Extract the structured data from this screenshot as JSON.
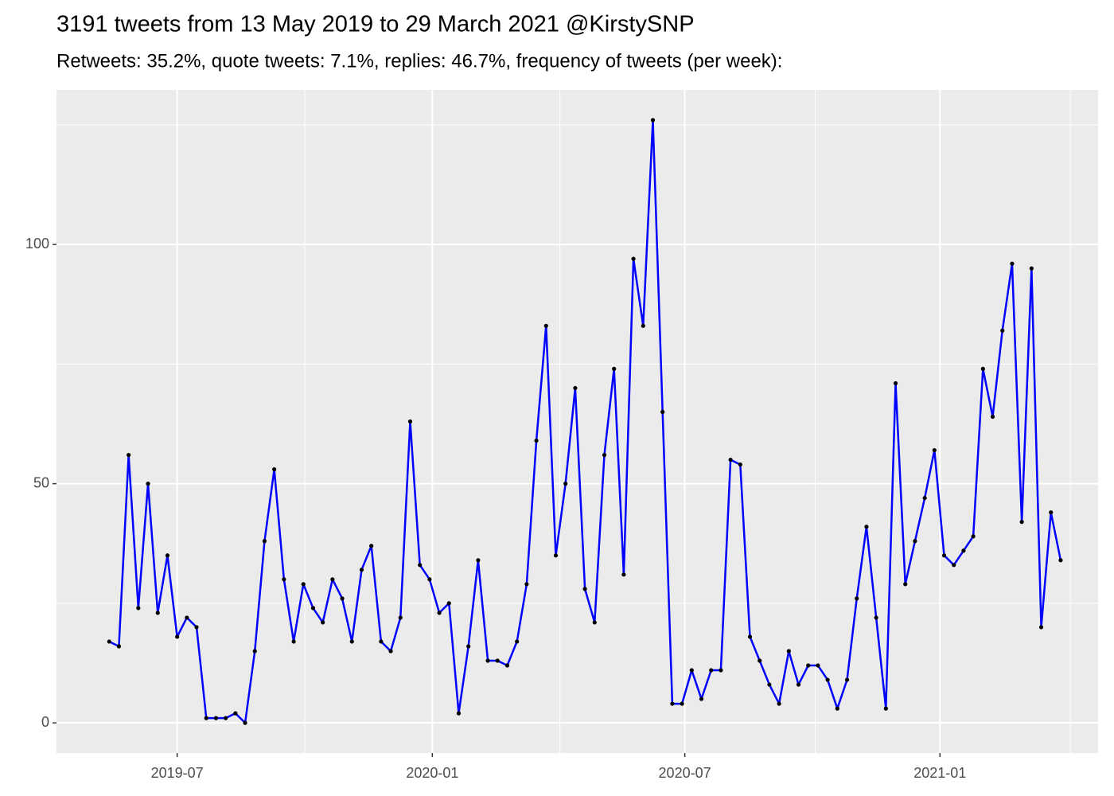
{
  "chart_data": {
    "type": "line",
    "title": "3191 tweets from 13 May 2019 to 29 March 2021 @KirstySNP",
    "subtitle": "Retweets: 35.2%, quote tweets: 7.1%, replies: 46.7%, frequency of tweets (per week):",
    "x": [
      "2019-05-13",
      "2019-05-20",
      "2019-05-27",
      "2019-06-03",
      "2019-06-10",
      "2019-06-17",
      "2019-06-24",
      "2019-07-01",
      "2019-07-08",
      "2019-07-15",
      "2019-07-22",
      "2019-07-29",
      "2019-08-05",
      "2019-08-12",
      "2019-08-19",
      "2019-08-26",
      "2019-09-02",
      "2019-09-09",
      "2019-09-16",
      "2019-09-23",
      "2019-09-30",
      "2019-10-07",
      "2019-10-14",
      "2019-10-21",
      "2019-10-28",
      "2019-11-04",
      "2019-11-11",
      "2019-11-18",
      "2019-11-25",
      "2019-12-02",
      "2019-12-09",
      "2019-12-16",
      "2019-12-23",
      "2019-12-30",
      "2020-01-06",
      "2020-01-13",
      "2020-01-20",
      "2020-01-27",
      "2020-02-03",
      "2020-02-10",
      "2020-02-17",
      "2020-02-24",
      "2020-03-02",
      "2020-03-09",
      "2020-03-16",
      "2020-03-23",
      "2020-03-30",
      "2020-04-06",
      "2020-04-13",
      "2020-04-20",
      "2020-04-27",
      "2020-05-04",
      "2020-05-11",
      "2020-05-18",
      "2020-05-25",
      "2020-06-01",
      "2020-06-08",
      "2020-06-15",
      "2020-06-22",
      "2020-06-29",
      "2020-07-06",
      "2020-07-13",
      "2020-07-20",
      "2020-07-27",
      "2020-08-03",
      "2020-08-10",
      "2020-08-17",
      "2020-08-24",
      "2020-08-31",
      "2020-09-07",
      "2020-09-14",
      "2020-09-21",
      "2020-09-28",
      "2020-10-05",
      "2020-10-12",
      "2020-10-19",
      "2020-10-26",
      "2020-11-02",
      "2020-11-09",
      "2020-11-16",
      "2020-11-23",
      "2020-11-30",
      "2020-12-07",
      "2020-12-14",
      "2020-12-21",
      "2020-12-28",
      "2021-01-04",
      "2021-01-11",
      "2021-01-18",
      "2021-01-25",
      "2021-02-01",
      "2021-02-08",
      "2021-02-15",
      "2021-02-22",
      "2021-03-01",
      "2021-03-08",
      "2021-03-15",
      "2021-03-22",
      "2021-03-29"
    ],
    "values": [
      17,
      16,
      56,
      24,
      50,
      23,
      35,
      18,
      22,
      20,
      1,
      1,
      1,
      2,
      0,
      15,
      38,
      53,
      30,
      17,
      29,
      24,
      21,
      30,
      26,
      17,
      32,
      37,
      17,
      15,
      22,
      63,
      33,
      30,
      23,
      25,
      2,
      16,
      34,
      13,
      13,
      12,
      17,
      29,
      59,
      83,
      35,
      50,
      70,
      28,
      21,
      56,
      74,
      31,
      97,
      83,
      126,
      65,
      4,
      4,
      11,
      5,
      11,
      11,
      55,
      54,
      18,
      13,
      8,
      4,
      15,
      8,
      12,
      12,
      9,
      3,
      9,
      26,
      41,
      22,
      3,
      71,
      29,
      38,
      47,
      57,
      35,
      33,
      36,
      39,
      74,
      64,
      82,
      96,
      42,
      95,
      20,
      44,
      34
    ],
    "color": "#0000ff",
    "point_color": "#000000",
    "xlim": [
      "2019-04-05",
      "2021-04-25"
    ],
    "xticks": [
      {
        "value": "2019-07-01",
        "label": "2019-07"
      },
      {
        "value": "2020-01-01",
        "label": "2020-01"
      },
      {
        "value": "2020-07-01",
        "label": "2020-07"
      },
      {
        "value": "2021-01-01",
        "label": "2021-01"
      }
    ],
    "ylim": [
      -6.3,
      132.3
    ],
    "yticks": [
      0,
      50,
      100
    ],
    "grid": true
  }
}
